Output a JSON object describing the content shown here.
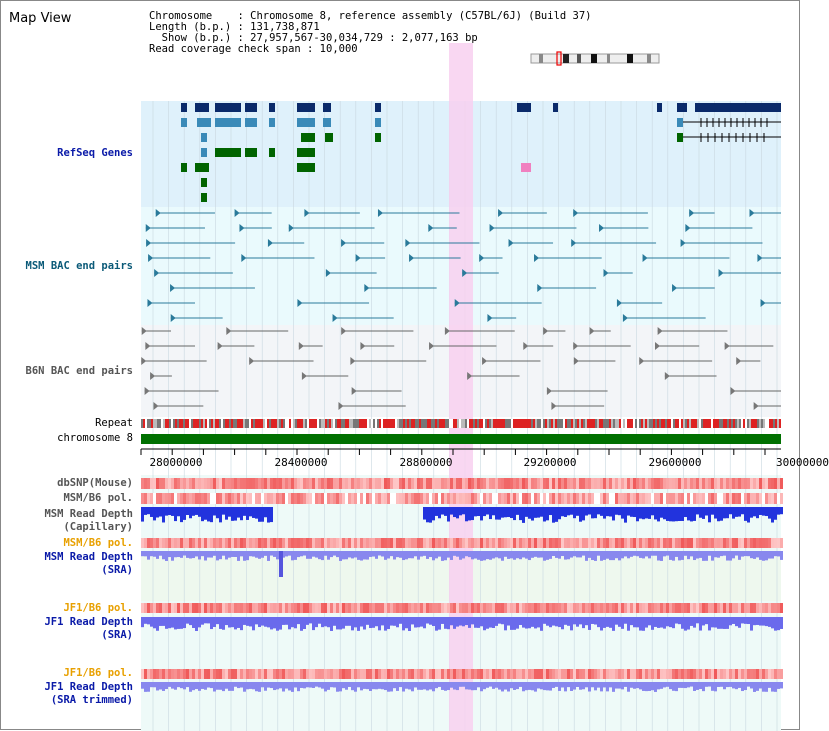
{
  "title": "Map View",
  "info": {
    "line1": "Chromosome    : Chromosome 8, reference assembly (C57BL/6J) (Build 37)",
    "line2": "Length (b.p.) : 131,738,871",
    "line3": "  Show (b.p.) : 27,957,567-30,034,729 : 2,077,163 bp",
    "line4": "Read coverage check span : 10,000"
  },
  "tracks": {
    "refseq": "RefSeq Genes",
    "msm_bac": "MSM BAC end pairs",
    "b6n_bac": "B6N BAC end pairs",
    "repeat": "Repeat",
    "chromosome": "chromosome 8",
    "dbsnp": "dbSNP(Mouse)",
    "msm_b6_pol": "MSM/B6 pol.",
    "msm_depth_cap_1": "MSM Read Depth",
    "msm_depth_cap_2": "(Capillary)",
    "msm_b6_pol_2": "MSM/B6 pol.",
    "msm_depth_sra_1": "MSM Read Depth",
    "msm_depth_sra_2": "(SRA)",
    "jf1_b6_pol": "JF1/B6 pol.",
    "jf1_depth_sra_1": "JF1 Read Depth",
    "jf1_depth_sra_2": "(SRA)",
    "jf1_b6_pol_2": "JF1/B6 pol.",
    "jf1_depth_tr_1": "JF1 Read Depth",
    "jf1_depth_tr_2": "(SRA trimmed)"
  },
  "axis": {
    "ticks": [
      "28000000",
      "28400000",
      "28800000",
      "29200000",
      "29600000",
      "30000000"
    ]
  },
  "colors": {
    "refseq_bg": "#dff1fb",
    "bac_bg": "#eafafd",
    "b6n_bg": "#f3f5f8",
    "highlight": "#f8d0f0",
    "chromosome": "#007000",
    "gene_dark": "#0a2a6a",
    "gene_mid": "#3a8ab8",
    "gene_green": "#006400"
  }
}
